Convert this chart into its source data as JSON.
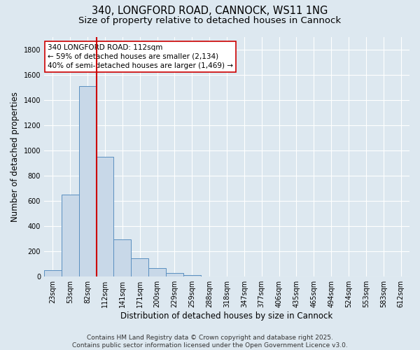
{
  "title_line1": "340, LONGFORD ROAD, CANNOCK, WS11 1NG",
  "title_line2": "Size of property relative to detached houses in Cannock",
  "xlabel": "Distribution of detached houses by size in Cannock",
  "ylabel": "Number of detached properties",
  "bar_labels": [
    "23sqm",
    "53sqm",
    "82sqm",
    "112sqm",
    "141sqm",
    "171sqm",
    "200sqm",
    "229sqm",
    "259sqm",
    "288sqm",
    "318sqm",
    "347sqm",
    "377sqm",
    "406sqm",
    "435sqm",
    "465sqm",
    "494sqm",
    "524sqm",
    "553sqm",
    "583sqm",
    "612sqm"
  ],
  "bar_values": [
    47,
    650,
    1510,
    950,
    290,
    140,
    65,
    25,
    10,
    1,
    0,
    0,
    0,
    0,
    0,
    0,
    0,
    0,
    0,
    0,
    0
  ],
  "bar_color": "#c8d8e8",
  "bar_edgecolor": "#5a8fc0",
  "redline_index": 3,
  "redline_color": "#cc0000",
  "annotation_text": "340 LONGFORD ROAD: 112sqm\n← 59% of detached houses are smaller (2,134)\n40% of semi-detached houses are larger (1,469) →",
  "annotation_box_edgecolor": "#cc0000",
  "annotation_box_facecolor": "#ffffff",
  "ylim": [
    0,
    1900
  ],
  "yticks": [
    0,
    200,
    400,
    600,
    800,
    1000,
    1200,
    1400,
    1600,
    1800
  ],
  "background_color": "#dde8f0",
  "grid_color": "#ffffff",
  "footer_line1": "Contains HM Land Registry data © Crown copyright and database right 2025.",
  "footer_line2": "Contains public sector information licensed under the Open Government Licence v3.0.",
  "title_fontsize": 10.5,
  "subtitle_fontsize": 9.5,
  "axis_label_fontsize": 8.5,
  "tick_fontsize": 7,
  "annotation_fontsize": 7.5,
  "footer_fontsize": 6.5
}
